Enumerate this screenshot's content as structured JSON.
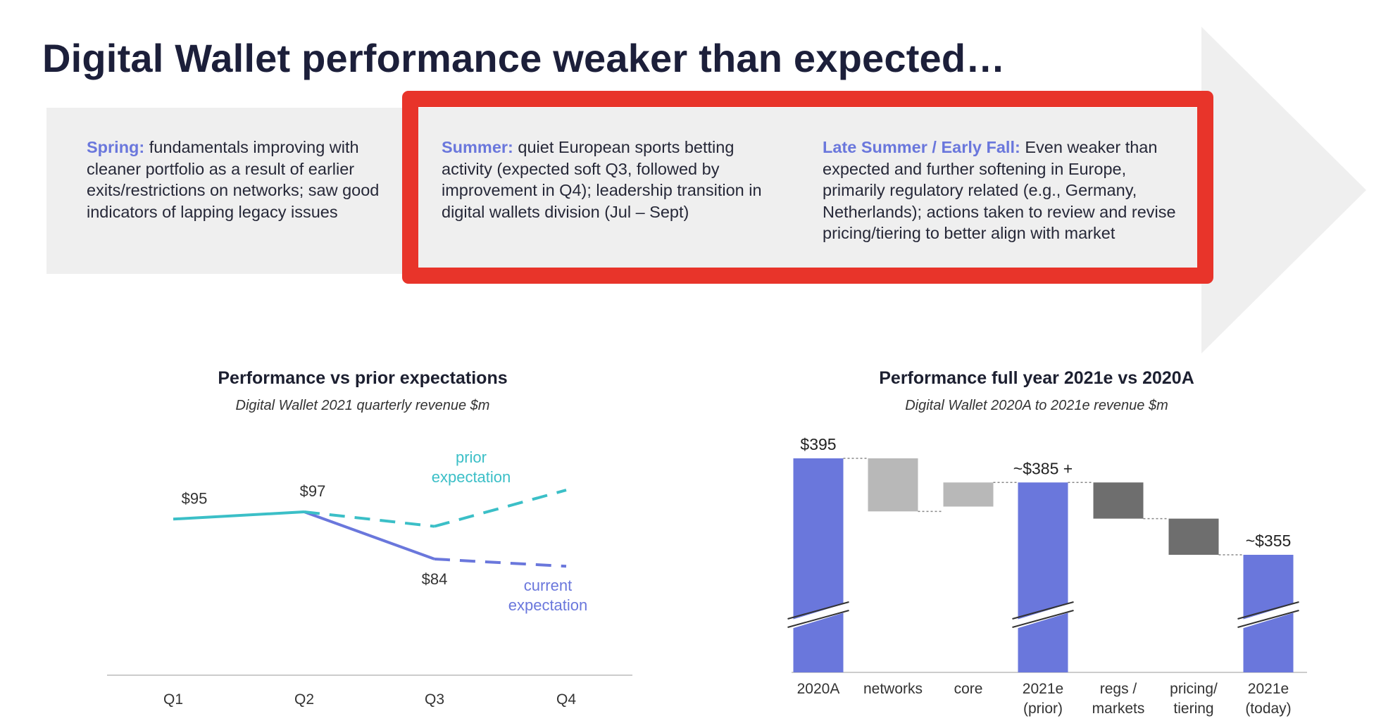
{
  "title": "Digital Wallet performance weaker than expected…",
  "colors": {
    "accent": "#6a77dc",
    "teal": "#3bbfc7",
    "highlight_border": "#e8342a",
    "panel_bg": "#efefef",
    "gray_light": "#b8b8b8",
    "gray_dark": "#6e6e6e"
  },
  "timeline": {
    "spring": {
      "label": "Spring:",
      "text": " fundamentals improving with cleaner portfolio as a result of earlier exits/restrictions on networks;  saw good indicators of lapping legacy issues"
    },
    "summer": {
      "label": "Summer:",
      "text": " quiet European sports betting activity (expected soft Q3, followed by improvement in Q4);  leadership transition in digital wallets division (Jul – Sept)"
    },
    "late_summer": {
      "label": "Late Summer / Early Fall:",
      "text": " Even weaker than expected and further softening in Europe, primarily regulatory related (e.g., Germany, Netherlands); actions taken to review and revise pricing/tiering to better align with market"
    }
  },
  "chart_data": [
    {
      "type": "line",
      "title": "Performance vs prior expectations",
      "subtitle": "Digital Wallet 2021 quarterly revenue $m",
      "categories": [
        "Q1",
        "Q2",
        "Q3",
        "Q4"
      ],
      "ylim": [
        60,
        110
      ],
      "series": [
        {
          "name": "actual",
          "values": [
            95,
            97,
            84,
            null
          ],
          "style": "solid"
        },
        {
          "name": "prior expectation",
          "label_lines": [
            "prior",
            "expectation"
          ],
          "values": [
            null,
            97,
            93,
            103
          ],
          "style": "dashed"
        },
        {
          "name": "current expectation",
          "label_lines": [
            "current",
            "expectation"
          ],
          "values": [
            null,
            null,
            84,
            82
          ],
          "style": "dashed"
        }
      ],
      "data_labels": [
        {
          "category": "Q1",
          "value": 95,
          "text": "$95"
        },
        {
          "category": "Q2",
          "value": 97,
          "text": "$97"
        },
        {
          "category": "Q3",
          "value": 84,
          "text": "$84"
        }
      ]
    },
    {
      "type": "waterfall",
      "title": "Performance full year 2021e vs 2020A",
      "subtitle": "Digital Wallet 2020A to 2021e revenue $m",
      "ylim": [
        280,
        400
      ],
      "axis_break": true,
      "categories": [
        {
          "lines": [
            "2020A"
          ]
        },
        {
          "lines": [
            "networks"
          ]
        },
        {
          "lines": [
            "core"
          ]
        },
        {
          "lines": [
            "2021e",
            "(prior)"
          ]
        },
        {
          "lines": [
            "regs /",
            "markets"
          ]
        },
        {
          "lines": [
            "pricing/",
            "tiering"
          ]
        },
        {
          "lines": [
            "2021e",
            "(today)"
          ]
        }
      ],
      "steps": [
        {
          "kind": "total",
          "value": 395,
          "label": "$395"
        },
        {
          "kind": "delta",
          "value": -22,
          "label": ""
        },
        {
          "kind": "delta",
          "value": 12,
          "label": ""
        },
        {
          "kind": "total",
          "value": 385,
          "label": "~$385 +"
        },
        {
          "kind": "delta",
          "value": -15,
          "label": ""
        },
        {
          "kind": "delta",
          "value": -15,
          "label": ""
        },
        {
          "kind": "total",
          "value": 355,
          "label": "~$355"
        }
      ]
    }
  ]
}
